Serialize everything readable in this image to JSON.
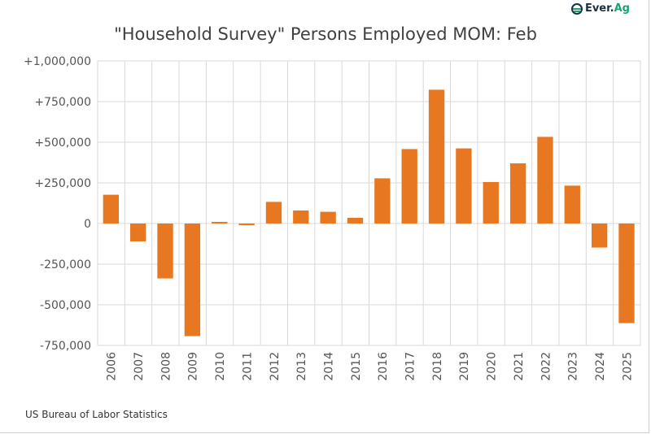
{
  "title": "\"Household Survey\" Persons Employed MOM: Feb",
  "logo": {
    "text_main": "Ever.",
    "text_accent": "Ag"
  },
  "source": "US Bureau of Labor Statistics",
  "colors": {
    "bar": "#E87722",
    "grid": "#d9d9d9",
    "logo_accent": "#1aa36f"
  },
  "chart_data": {
    "type": "bar",
    "title": "\"Household Survey\" Persons Employed MOM: Feb",
    "categories": [
      "2006",
      "2007",
      "2008",
      "2009",
      "2010",
      "2011",
      "2012",
      "2013",
      "2014",
      "2015",
      "2016",
      "2017",
      "2018",
      "2019",
      "2020",
      "2021",
      "2022",
      "2023",
      "2024",
      "2025"
    ],
    "values": [
      177000,
      -110000,
      -338000,
      -693000,
      10000,
      -10000,
      133000,
      80000,
      72000,
      35000,
      278000,
      458000,
      823000,
      462000,
      255000,
      370000,
      533000,
      233000,
      -148000,
      -613000
    ],
    "ylim": [
      -750000,
      1000000
    ],
    "yticks": [
      1000000,
      750000,
      500000,
      250000,
      0,
      -250000,
      -500000,
      -750000
    ],
    "ytick_labels": [
      "+1,000,000",
      "+750,000",
      "+500,000",
      "+250,000",
      "0",
      "-250,000",
      "-500,000",
      "-750,000"
    ],
    "grid": true,
    "xlabel": "",
    "ylabel": ""
  }
}
